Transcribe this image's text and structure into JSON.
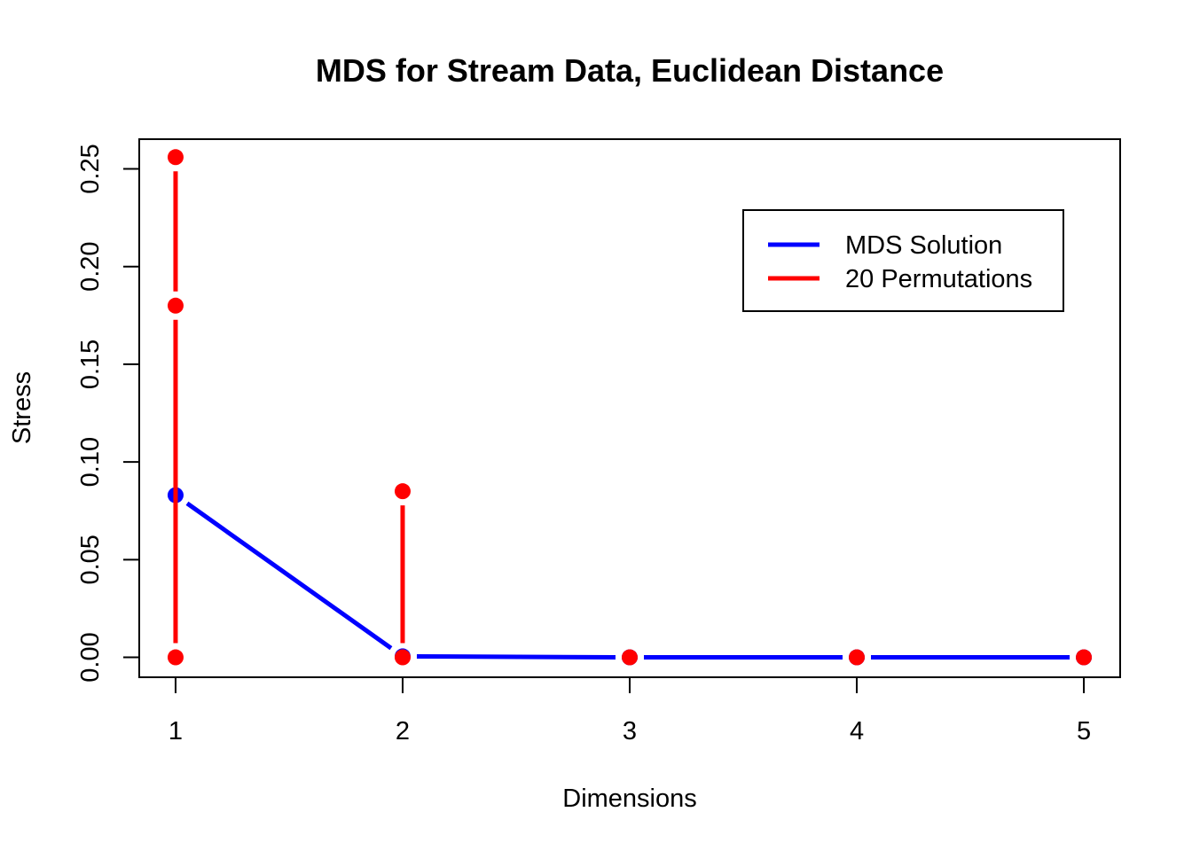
{
  "chart_data": {
    "type": "line",
    "title": "MDS for Stream Data, Euclidean Distance",
    "xlabel": "Dimensions",
    "ylabel": "Stress",
    "xlim": [
      0.84,
      5.16
    ],
    "ylim": [
      -0.0102,
      0.2652
    ],
    "x_ticks": [
      1,
      2,
      3,
      4,
      5
    ],
    "x_tick_labels": [
      "1",
      "2",
      "3",
      "4",
      "5"
    ],
    "y_ticks": [
      0.0,
      0.05,
      0.1,
      0.15,
      0.2,
      0.25
    ],
    "y_tick_labels": [
      "0.00",
      "0.05",
      "0.10",
      "0.15",
      "0.20",
      "0.25"
    ],
    "grid": false,
    "legend_position": "top-right",
    "series": [
      {
        "name": "MDS Solution",
        "color": "#0000ff",
        "x": [
          1,
          2,
          3,
          4,
          5
        ],
        "y": [
          0.083,
          0.0005,
          0.0,
          0.0,
          0.0
        ]
      },
      {
        "name": "20 Permutations",
        "color": "#ff0000",
        "segments": [
          {
            "x": 1,
            "points": [
              0.0,
              0.18,
              0.256
            ]
          },
          {
            "x": 2,
            "points": [
              0.0,
              0.085
            ]
          },
          {
            "x": 3,
            "points": [
              0.0
            ]
          },
          {
            "x": 4,
            "points": [
              0.0
            ]
          },
          {
            "x": 5,
            "points": [
              0.0
            ]
          }
        ]
      }
    ]
  }
}
